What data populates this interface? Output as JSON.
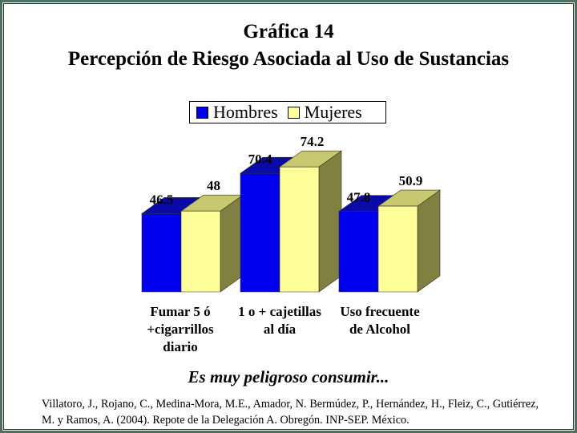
{
  "title": "Gráfica 14",
  "subtitle_title": "Percepción de Riesgo Asociada al Uso de Sustancias",
  "legend": {
    "hombres": "Hombres",
    "mujeres": "Mujeres"
  },
  "caption": "Es muy peligroso consumir...",
  "source": "Villatoro, J., Rojano, C., Medina-Mora, M.E., Amador, N. Bermúdez, P., Hernández, H., Fleiz, C., Gutiérrez, M. y Ramos, A. (2004). Repote de la Delegación A. Obregón. INP-SEP. México.",
  "colors": {
    "hombres": "#0000ee",
    "mujeres": "#ffff99",
    "side": "#808040",
    "frame": "#4f6f5f"
  },
  "chart_data": {
    "type": "bar",
    "categories": [
      "Fumar 5 ó\n+cigarrillos\ndiario",
      "1 o + cajetillas\nal día",
      "Uso frecuente\nde Alcohol"
    ],
    "series": [
      {
        "name": "Hombres",
        "values": [
          46.5,
          70.4,
          47.8
        ]
      },
      {
        "name": "Mujeres",
        "values": [
          48,
          74.2,
          50.9
        ]
      }
    ],
    "value_labels": [
      [
        "46.5",
        "70.4",
        "47.8"
      ],
      [
        "48",
        "74.2",
        "50.9"
      ]
    ],
    "ylim": [
      0,
      80
    ],
    "legend_position": "top"
  }
}
